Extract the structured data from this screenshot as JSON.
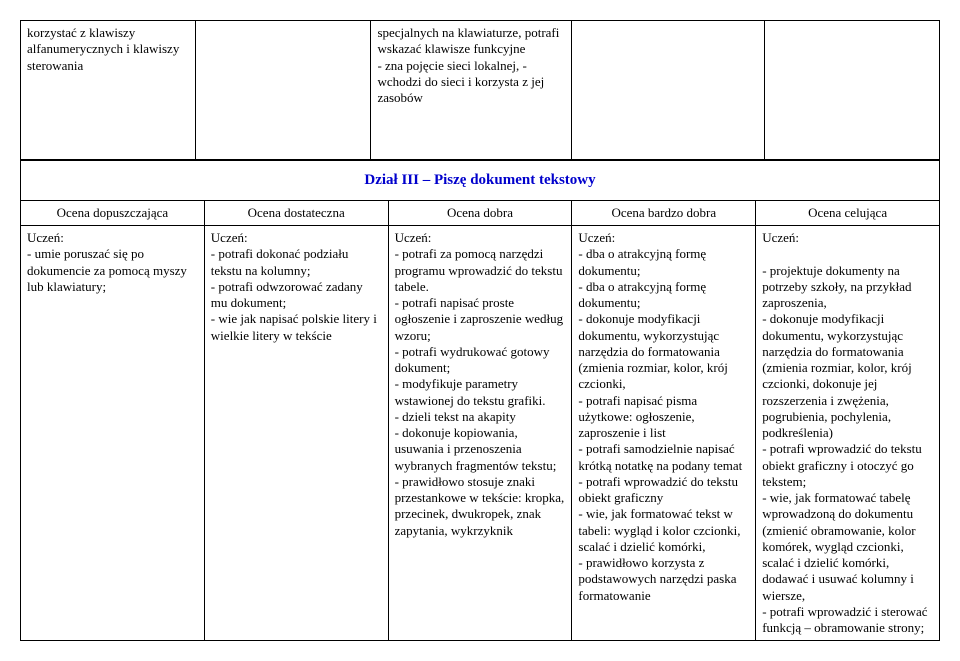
{
  "topTable": {
    "r0c0": "korzystać z klawiszy alfanumerycznych i klawiszy sterowania",
    "r0c1": "",
    "r0c2": "specjalnych na klawiaturze, potrafi wskazać klawisze funkcyjne\n- zna pojęcie sieci lokalnej, - wchodzi do sieci i korzysta z jej zasobów",
    "r0c3": "",
    "r0c4": ""
  },
  "sectionTitle": "Dział III – Piszę dokument tekstowy",
  "headers": {
    "h0": "Ocena dopuszczająca",
    "h1": "Ocena dostateczna",
    "h2": "Ocena dobra",
    "h3": "Ocena bardzo dobra",
    "h4": "Ocena celująca"
  },
  "cells": {
    "c0": "Uczeń:\n- umie poruszać się po dokumencie za pomocą myszy lub klawiatury;",
    "c1": "Uczeń:\n- potrafi dokonać podziału tekstu na kolumny;\n- potrafi odwzorować zadany mu dokument;\n- wie jak napisać polskie litery i wielkie litery w tekście",
    "c2": "Uczeń:\n- potrafi za pomocą narzędzi programu wprowadzić do tekstu tabele.\n- potrafi napisać proste ogłoszenie i zaproszenie według wzoru;\n- potrafi wydrukować gotowy dokument;\n- modyfikuje parametry wstawionej do tekstu grafiki.\n- dzieli tekst na akapity\n- dokonuje kopiowania, usuwania i przenoszenia wybranych fragmentów tekstu;\n- prawidłowo stosuje znaki przestankowe w tekście: kropka, przecinek, dwukropek, znak zapytania, wykrzyknik",
    "c3": "Uczeń:\n- dba o atrakcyjną formę dokumentu;\n- dba o atrakcyjną formę dokumentu;\n- dokonuje modyfikacji dokumentu, wykorzystując narzędzia do formatowania (zmienia rozmiar, kolor, krój czcionki,\n- potrafi napisać pisma użytkowe: ogłoszenie, zaproszenie i list\n- potrafi samodzielnie napisać krótką notatkę na podany temat\n- potrafi wprowadzić do tekstu obiekt graficzny\n- wie, jak formatować tekst w tabeli: wygląd i kolor czcionki, scalać i dzielić komórki,\n- prawidłowo korzysta z podstawowych narzędzi paska formatowanie",
    "c4": "Uczeń:\n\n- projektuje dokumenty na potrzeby szkoły, na przykład zaproszenia,\n- dokonuje modyfikacji dokumentu, wykorzystując narzędzia do formatowania (zmienia rozmiar, kolor, krój czcionki, dokonuje jej rozszerzenia i zwężenia, pogrubienia, pochylenia, podkreślenia)\n- potrafi wprowadzić do tekstu obiekt graficzny i otoczyć go tekstem;\n- wie, jak formatować tabelę wprowadzoną do dokumentu (zmienić obramowanie, kolor komórek, wygląd czcionki, scalać i dzielić komórki, dodawać i usuwać kolumny i wiersze,\n- potrafi wprowadzić i sterować funkcją – obramowanie strony;"
  },
  "colors": {
    "titleColor": "#0000cc",
    "border": "#000000",
    "text": "#000000",
    "background": "#ffffff"
  },
  "typography": {
    "fontFamily": "Times New Roman",
    "bodyFontSize": 13,
    "titleFontSize": 15
  }
}
